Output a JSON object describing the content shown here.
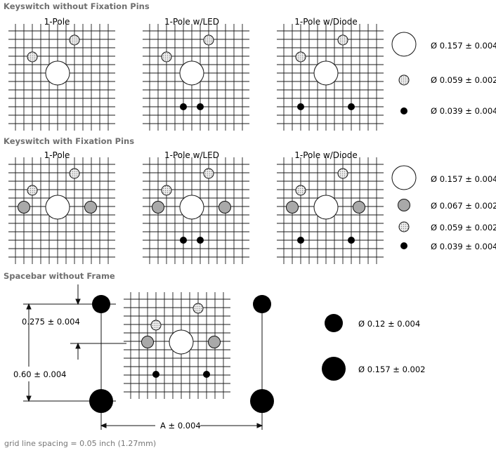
{
  "sections": [
    {
      "title": "Keyswitch without Fixation Pins",
      "panels": [
        {
          "label": "1-Pole"
        },
        {
          "label": "1-Pole w/LED"
        },
        {
          "label": "1-Pole w/Diode"
        }
      ],
      "legend": [
        {
          "hole": "large-white",
          "text": "Ø 0.157 ± 0.004"
        },
        {
          "hole": "small-dotted",
          "text": "Ø 0.059 ± 0.002"
        },
        {
          "hole": "tiny-black",
          "text": "Ø 0.039 ± 0.004"
        }
      ]
    },
    {
      "title": "Keyswitch with Fixation Pins",
      "panels": [
        {
          "label": "1-Pole"
        },
        {
          "label": "1-Pole w/LED"
        },
        {
          "label": "1-Pole w/Diode"
        }
      ],
      "legend": [
        {
          "hole": "large-white",
          "text": "Ø 0.157 ± 0.004"
        },
        {
          "hole": "medium-gray",
          "text": "Ø 0.067 ± 0.002"
        },
        {
          "hole": "small-dotted",
          "text": "Ø 0.059 ± 0.002"
        },
        {
          "hole": "tiny-black",
          "text": "Ø 0.039 ± 0.004"
        }
      ]
    },
    {
      "title": "Spacebar without Frame",
      "dimensions": {
        "vertical_small": "0.275 ± 0.004",
        "vertical_large": "0.60 ± 0.004",
        "horizontal": "A ± 0.004"
      },
      "legend": [
        {
          "hole": "black-medium",
          "text": "Ø 0.12 ± 0.004"
        },
        {
          "hole": "black-large",
          "text": "Ø 0.157 ± 0.002"
        }
      ]
    }
  ],
  "footnote": "grid line spacing = 0.05 inch (1.27mm)",
  "colors": {
    "grid": "#1a1a1a",
    "gray_hole": "#a9a9a9",
    "dotted_hole": "#e0e0e0",
    "black": "#000000"
  }
}
